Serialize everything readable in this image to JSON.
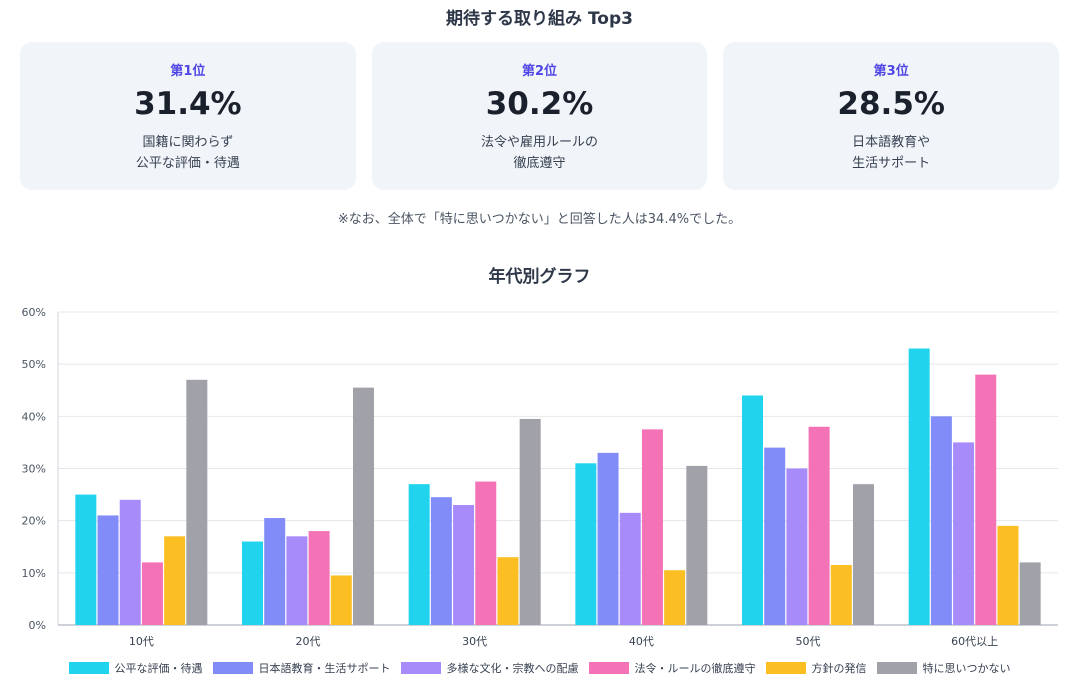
{
  "top": {
    "title": "期待する取り組み Top3",
    "cards": [
      {
        "rank": "第1位",
        "pct": "31.4%",
        "line1": "国籍に関わらず",
        "line2": "公平な評価・待遇"
      },
      {
        "rank": "第2位",
        "pct": "30.2%",
        "line1": "法令や雇用ルールの",
        "line2": "徹底遵守"
      },
      {
        "rank": "第3位",
        "pct": "28.5%",
        "line1": "日本語教育や",
        "line2": "生活サポート"
      }
    ],
    "note": "※なお、全体で「特に思いつかない」と回答した人は34.4%でした。",
    "accent": "#4f46e5"
  },
  "chart_data": {
    "type": "bar",
    "title": "年代別グラフ",
    "categories": [
      "10代",
      "20代",
      "30代",
      "40代",
      "50代",
      "60代以上"
    ],
    "ylim": [
      0,
      60
    ],
    "yticks": [
      "0%",
      "10%",
      "20%",
      "30%",
      "40%",
      "50%",
      "60%"
    ],
    "grid": true,
    "legend_position": "bottom",
    "series": [
      {
        "name": "公平な評価・待遇",
        "color": "#22d3ee",
        "values": [
          25,
          16,
          27,
          31,
          44,
          53
        ]
      },
      {
        "name": "日本語教育・生活サポート",
        "color": "#818cf8",
        "values": [
          21,
          20.5,
          24.5,
          33,
          34,
          40
        ]
      },
      {
        "name": "多様な文化・宗教への配慮",
        "color": "#a78bfa",
        "values": [
          24,
          17,
          23,
          21.5,
          30,
          35
        ]
      },
      {
        "name": "法令・ルールの徹底遵守",
        "color": "#f472b6",
        "values": [
          12,
          18,
          27.5,
          37.5,
          38,
          48
        ]
      },
      {
        "name": "方針の発信",
        "color": "#fbbf24",
        "values": [
          17,
          9.5,
          13,
          10.5,
          11.5,
          19
        ]
      },
      {
        "name": "特に思いつかない",
        "color": "#a1a1aa",
        "values": [
          47,
          45.5,
          39.5,
          30.5,
          27,
          12
        ]
      }
    ]
  }
}
